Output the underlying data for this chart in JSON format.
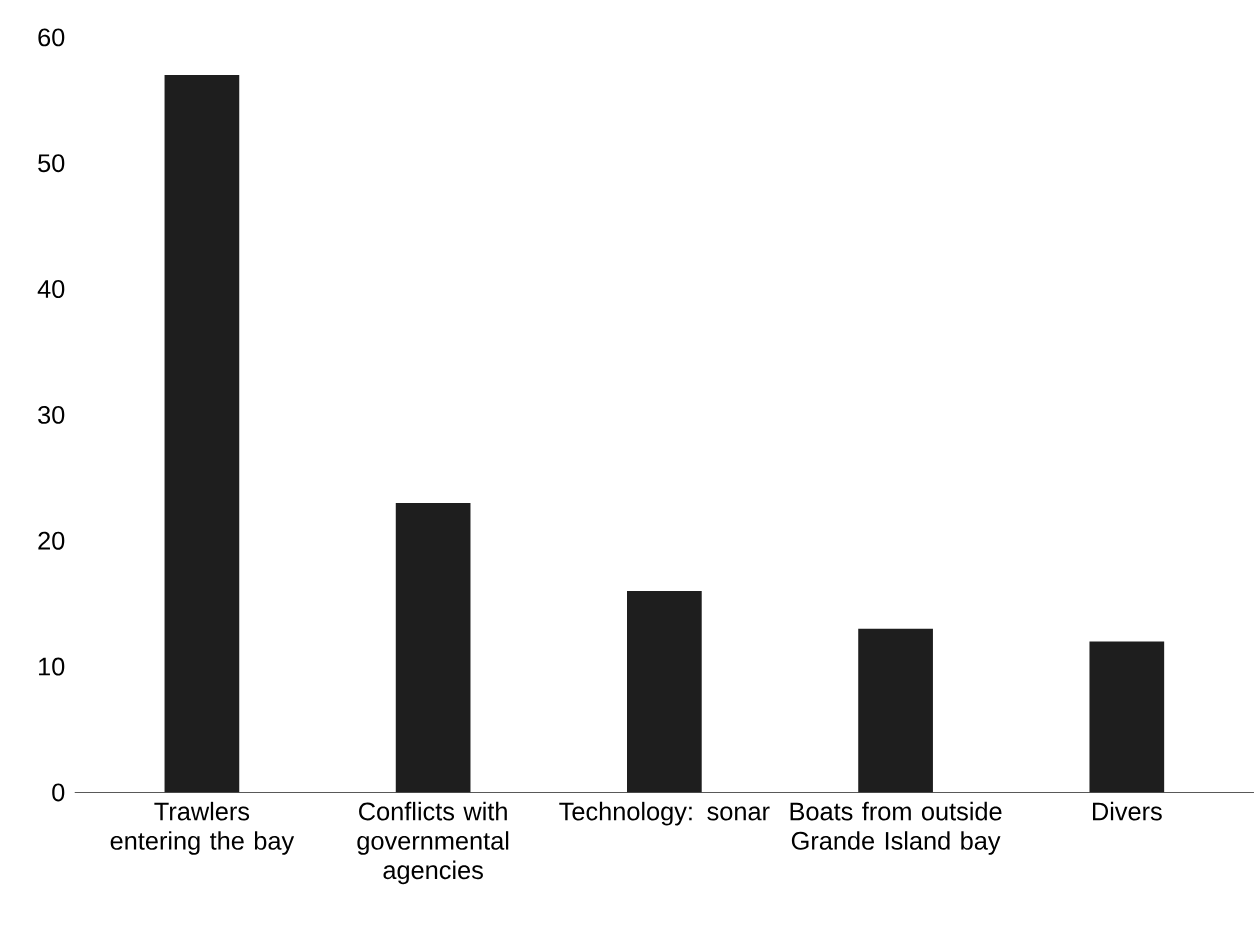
{
  "chart_data": {
    "type": "bar",
    "categories": [
      "Trawlers entering the bay",
      "Conflicts with governmental agencies",
      "Technology: sonar",
      "Boats from outside Grande Island bay",
      "Divers"
    ],
    "values": [
      57,
      23,
      16,
      13,
      12
    ],
    "color": "#1e1e1e",
    "ylim": [
      0,
      60
    ],
    "yticks": [
      0,
      10,
      20,
      30,
      40,
      50,
      60
    ]
  }
}
